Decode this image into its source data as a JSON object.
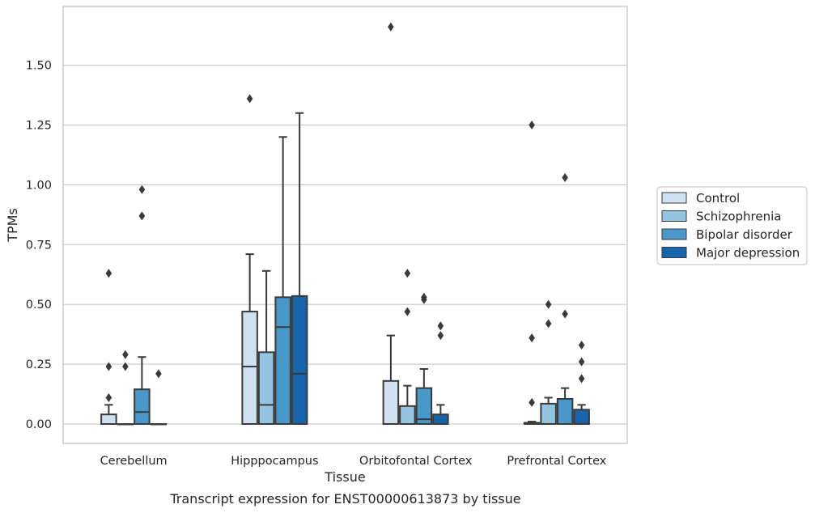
{
  "chart_data": {
    "type": "box",
    "title": "",
    "caption": "Transcript expression for ENST00000613873 by tissue",
    "xlabel": "Tissue",
    "ylabel": "TPMs",
    "ylim": [
      -0.08,
      1.78
    ],
    "yticks": [
      0.0,
      0.25,
      0.5,
      0.75,
      1.0,
      1.25,
      1.5
    ],
    "ytick_labels": [
      "0.00",
      "0.25",
      "0.50",
      "0.75",
      "1.00",
      "1.25",
      "1.50"
    ],
    "grid": "horizontal",
    "legend_position": "right",
    "categories": [
      "Cerebellum",
      "Hipppocampus",
      "Orbitofontal Cortex",
      "Prefrontal Cortex"
    ],
    "series": [
      {
        "name": "Control",
        "color": "#d0e1f2",
        "boxes": [
          {
            "q1": 0.0,
            "median": 0.0,
            "q3": 0.04,
            "whisker_low": 0.0,
            "whisker_high": 0.08,
            "outliers": [
              0.11,
              0.24,
              0.63
            ]
          },
          {
            "q1": 0.0,
            "median": 0.24,
            "q3": 0.47,
            "whisker_low": 0.0,
            "whisker_high": 0.71,
            "outliers": [
              1.36
            ]
          },
          {
            "q1": 0.0,
            "median": 0.0,
            "q3": 0.18,
            "whisker_low": 0.0,
            "whisker_high": 0.37,
            "outliers": [
              1.66
            ]
          },
          {
            "q1": 0.0,
            "median": 0.0,
            "q3": 0.005,
            "whisker_low": 0.0,
            "whisker_high": 0.01,
            "outliers": [
              0.09,
              0.36,
              1.25
            ]
          }
        ]
      },
      {
        "name": "Schizophrenia",
        "color": "#94c4df",
        "boxes": [
          {
            "q1": 0.0,
            "median": 0.0,
            "q3": 0.0,
            "whisker_low": 0.0,
            "whisker_high": 0.0,
            "outliers": [
              0.24,
              0.29
            ]
          },
          {
            "q1": 0.0,
            "median": 0.08,
            "q3": 0.3,
            "whisker_low": 0.0,
            "whisker_high": 0.64,
            "outliers": []
          },
          {
            "q1": 0.0,
            "median": 0.0,
            "q3": 0.075,
            "whisker_low": 0.0,
            "whisker_high": 0.16,
            "outliers": [
              0.47,
              0.63
            ]
          },
          {
            "q1": 0.0,
            "median": 0.0,
            "q3": 0.085,
            "whisker_low": 0.0,
            "whisker_high": 0.11,
            "outliers": [
              0.42,
              0.5
            ]
          }
        ]
      },
      {
        "name": "Bipolar disorder",
        "color": "#4a98c9",
        "boxes": [
          {
            "q1": 0.0,
            "median": 0.05,
            "q3": 0.145,
            "whisker_low": 0.0,
            "whisker_high": 0.28,
            "outliers": [
              0.87,
              0.98
            ]
          },
          {
            "q1": 0.0,
            "median": 0.405,
            "q3": 0.53,
            "whisker_low": 0.0,
            "whisker_high": 1.2,
            "outliers": []
          },
          {
            "q1": 0.0,
            "median": 0.02,
            "q3": 0.15,
            "whisker_low": 0.0,
            "whisker_high": 0.23,
            "outliers": [
              0.52,
              0.53
            ]
          },
          {
            "q1": 0.0,
            "median": 0.0,
            "q3": 0.105,
            "whisker_low": 0.0,
            "whisker_high": 0.15,
            "outliers": [
              0.46,
              1.03
            ]
          }
        ]
      },
      {
        "name": "Major depression",
        "color": "#1764ab",
        "boxes": [
          {
            "q1": 0.0,
            "median": 0.0,
            "q3": 0.0,
            "whisker_low": 0.0,
            "whisker_high": 0.0,
            "outliers": [
              0.21
            ]
          },
          {
            "q1": 0.0,
            "median": 0.21,
            "q3": 0.535,
            "whisker_low": 0.0,
            "whisker_high": 1.3,
            "outliers": []
          },
          {
            "q1": 0.0,
            "median": 0.0,
            "q3": 0.04,
            "whisker_low": 0.0,
            "whisker_high": 0.08,
            "outliers": [
              0.37,
              0.41
            ]
          },
          {
            "q1": 0.0,
            "median": 0.0,
            "q3": 0.06,
            "whisker_low": 0.0,
            "whisker_high": 0.08,
            "outliers": [
              0.19,
              0.26,
              0.33
            ]
          }
        ]
      }
    ]
  }
}
